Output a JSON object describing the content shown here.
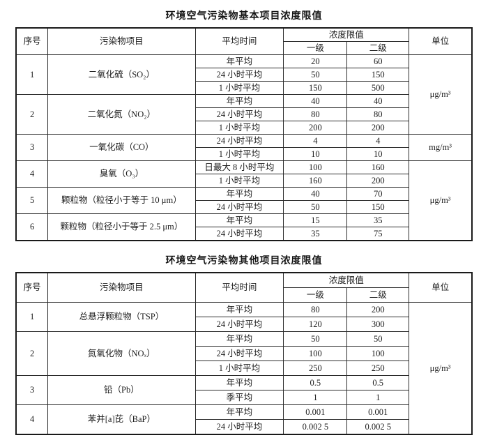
{
  "table1": {
    "title": "环境空气污染物基本项目浓度限值",
    "headers": {
      "index": "序号",
      "item": "污染物项目",
      "time": "平均时间",
      "limits": "浓度限值",
      "grade1": "一级",
      "grade2": "二级",
      "unit": "单位"
    },
    "groups": [
      {
        "no": "1",
        "name": "二氧化硫（SO₂）",
        "rows": [
          [
            "年平均",
            "20",
            "60"
          ],
          [
            "24 小时平均",
            "50",
            "150"
          ],
          [
            "1 小时平均",
            "150",
            "500"
          ]
        ]
      },
      {
        "no": "2",
        "name": "二氧化氮（NO₂）",
        "rows": [
          [
            "年平均",
            "40",
            "40"
          ],
          [
            "24 小时平均",
            "80",
            "80"
          ],
          [
            "1 小时平均",
            "200",
            "200"
          ]
        ]
      },
      {
        "no": "3",
        "name": "一氧化碳（CO）",
        "rows": [
          [
            "24 小时平均",
            "4",
            "4"
          ],
          [
            "1 小时平均",
            "10",
            "10"
          ]
        ]
      },
      {
        "no": "4",
        "name": "臭氧（O₃）",
        "rows": [
          [
            "日最大 8 小时平均",
            "100",
            "160"
          ],
          [
            "1 小时平均",
            "160",
            "200"
          ]
        ]
      },
      {
        "no": "5",
        "name": "颗粒物（粒径小于等于 10 μm）",
        "rows": [
          [
            "年平均",
            "40",
            "70"
          ],
          [
            "24 小时平均",
            "50",
            "150"
          ]
        ]
      },
      {
        "no": "6",
        "name": "颗粒物（粒径小于等于 2.5 μm）",
        "rows": [
          [
            "年平均",
            "15",
            "35"
          ],
          [
            "24 小时平均",
            "35",
            "75"
          ]
        ]
      }
    ],
    "units": [
      {
        "label": "μg/m³"
      },
      {
        "label": "mg/m³"
      },
      {
        "label": "μg/m³"
      }
    ]
  },
  "table2": {
    "title": "环境空气污染物其他项目浓度限值",
    "headers": {
      "index": "序号",
      "item": "污染物项目",
      "time": "平均时间",
      "limits": "浓度限值",
      "grade1": "一级",
      "grade2": "二级",
      "unit": "单位"
    },
    "groups": [
      {
        "no": "1",
        "name": "总悬浮颗粒物（TSP）",
        "rows": [
          [
            "年平均",
            "80",
            "200"
          ],
          [
            "24 小时平均",
            "120",
            "300"
          ]
        ]
      },
      {
        "no": "2",
        "name": "氮氧化物（NOₓ）",
        "rows": [
          [
            "年平均",
            "50",
            "50"
          ],
          [
            "24 小时平均",
            "100",
            "100"
          ],
          [
            "1 小时平均",
            "250",
            "250"
          ]
        ]
      },
      {
        "no": "3",
        "name": "铅（Pb）",
        "rows": [
          [
            "年平均",
            "0.5",
            "0.5"
          ],
          [
            "季平均",
            "1",
            "1"
          ]
        ]
      },
      {
        "no": "4",
        "name": "苯并[a]芘（BaP）",
        "rows": [
          [
            "年平均",
            "0.001",
            "0.001"
          ],
          [
            "24 小时平均",
            "0.002 5",
            "0.002 5"
          ]
        ]
      }
    ],
    "units": [
      {
        "label": "μg/m³"
      }
    ]
  }
}
